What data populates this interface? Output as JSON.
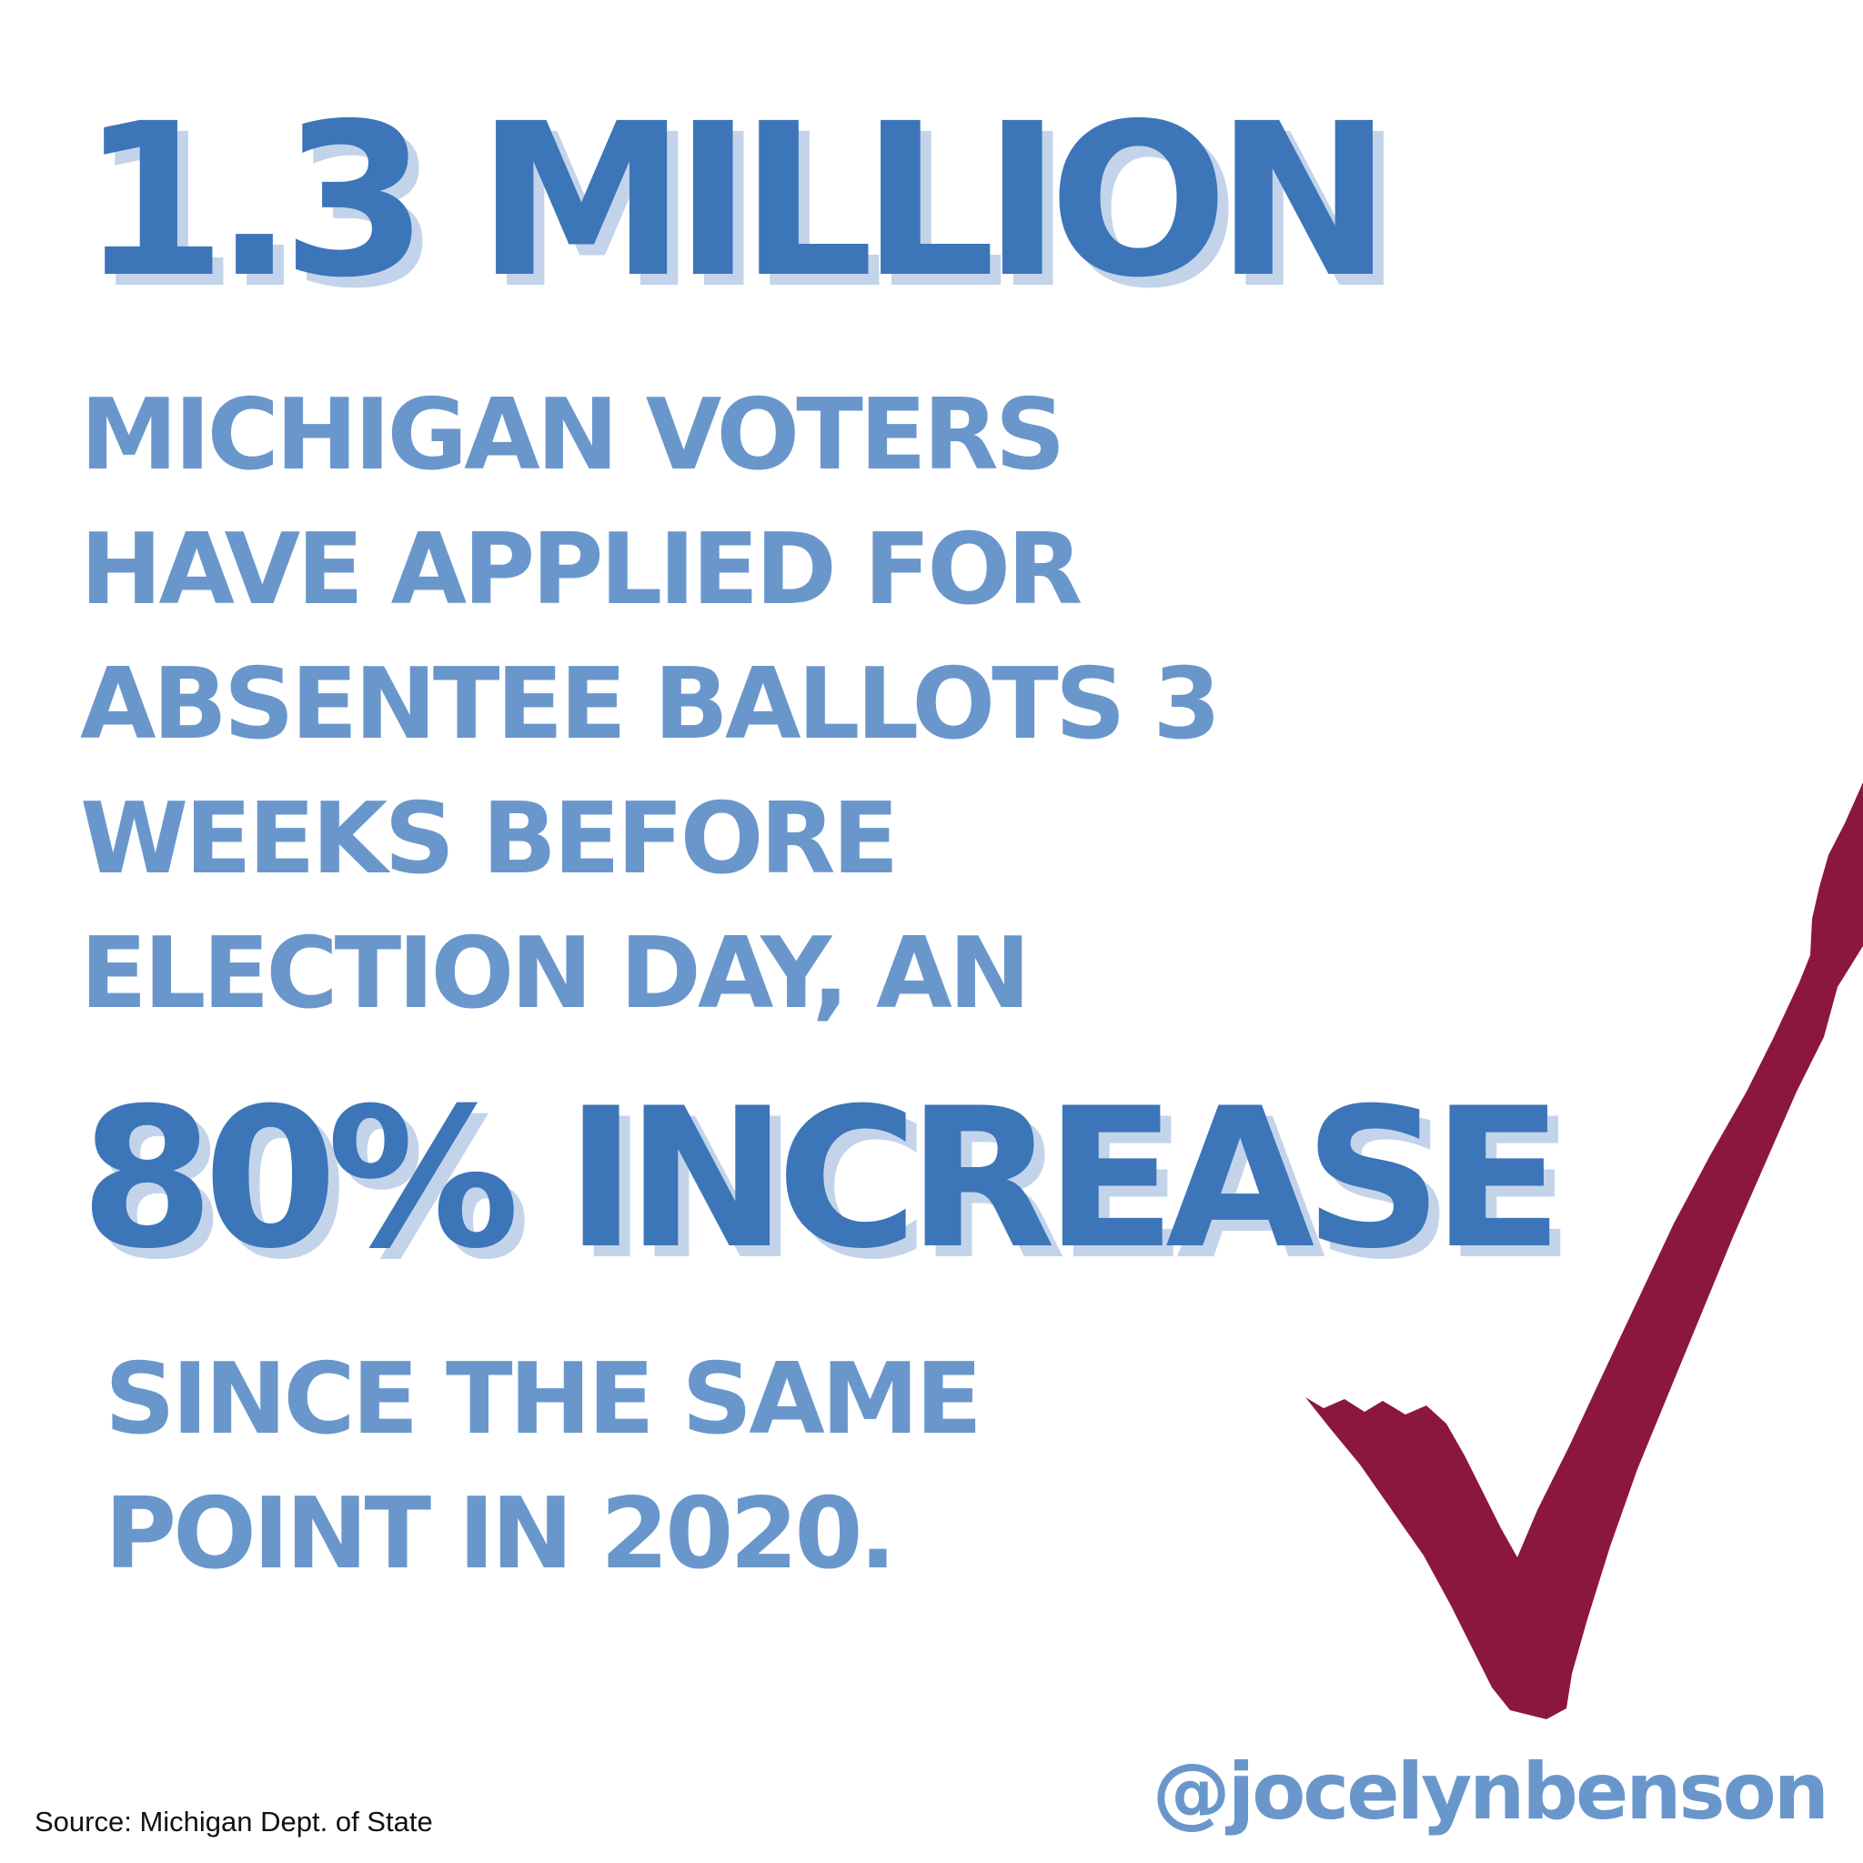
{
  "colors": {
    "strong_blue": "#3d75b9",
    "shadow_blue": "#c3d4ea",
    "soft_blue": "#6a97cb",
    "check_maroon": "#8c173d",
    "background": "#ffffff"
  },
  "headline": "1.3 MILLION",
  "body_lines": [
    "MICHIGAN VOTERS",
    "HAVE APPLIED FOR",
    "ABSENTEE BALLOTS 3",
    "WEEKS BEFORE",
    "ELECTION DAY, AN"
  ],
  "big_stat": "80% INCREASE",
  "since_lines": [
    "SINCE THE SAME",
    "POINT IN 2020."
  ],
  "source": "Source: Michigan Dept. of State",
  "handle": "@jocelynbenson",
  "graphic": {
    "icon": "checkmark-icon"
  }
}
